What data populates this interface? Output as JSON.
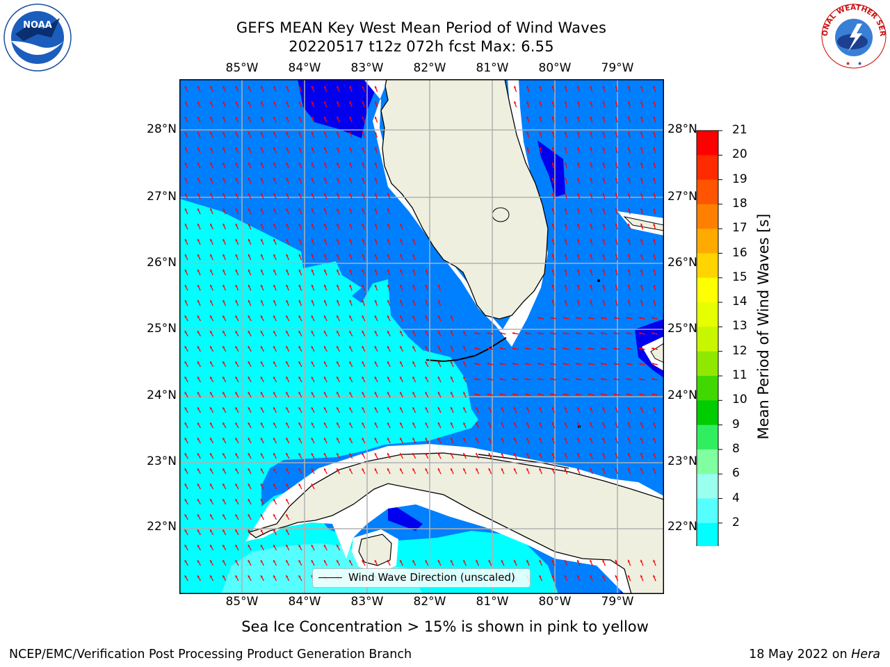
{
  "title": {
    "line1": "GEFS MEAN Key West Mean Period of Wind Waves",
    "line2": "20220517 t12z 072h fcst   Max: 6.55"
  },
  "subtitle": "Sea Ice Concentration > 15% is shown in pink to yellow",
  "footer": {
    "left": "NCEP/EMC/Verification Post Processing Product Generation Branch",
    "right_prefix": "18 May 2022 on",
    "right_machine": "Hera"
  },
  "map": {
    "lon_labels": [
      "85°W",
      "84°W",
      "83°W",
      "82°W",
      "81°W",
      "80°W",
      "79°W"
    ],
    "lat_labels": [
      "28°N",
      "27°N",
      "26°N",
      "25°N",
      "24°N",
      "23°N",
      "22°N"
    ],
    "legend_label": "Wind Wave Direction (unscaled)",
    "arrow_color": "#ff0000",
    "land_color": "#efefdf",
    "gridline_color": "#b0b0b0"
  },
  "colorbar": {
    "title": "Mean Period of Wind Waves [s]",
    "ticks": [
      "21",
      "20",
      "19",
      "18",
      "17",
      "16",
      "15",
      "14",
      "13",
      "12",
      "11",
      "10",
      "9",
      "8",
      "6",
      "4",
      "2"
    ],
    "colors_top_to_bottom": [
      "#ff0000",
      "#ff2a00",
      "#ff5400",
      "#ff7f00",
      "#ffaa00",
      "#ffd400",
      "#ffff00",
      "#e5ff00",
      "#c8f500",
      "#90e800",
      "#40d800",
      "#00cc00",
      "#30ee60",
      "#7fff9f",
      "#99ffee",
      "#55ffff",
      "#00ffff",
      "#007fff"
    ],
    "extend_color": "#0000ee"
  },
  "logos": {
    "noaa_text": "NOAA",
    "nws_text": "NATIONAL WEATHER SERVICE"
  }
}
